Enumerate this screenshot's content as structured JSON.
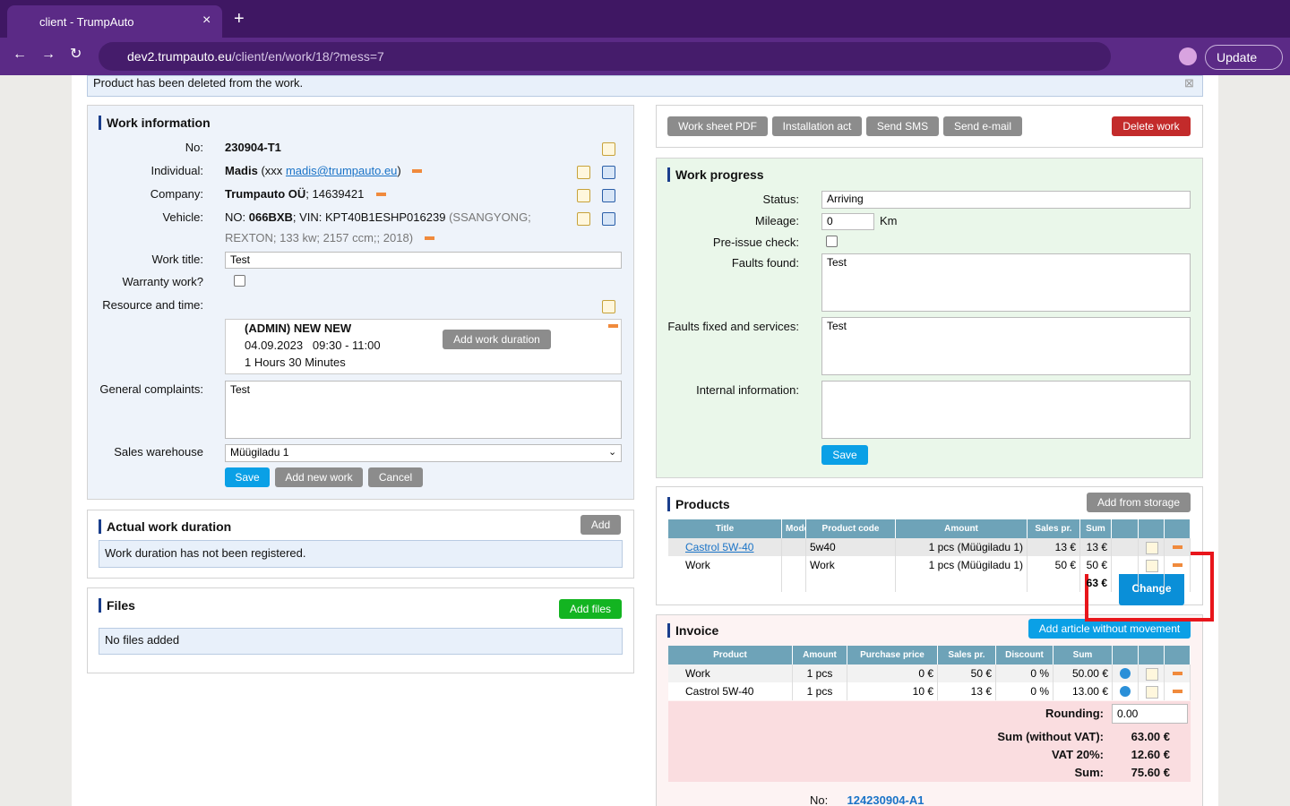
{
  "browser": {
    "tab_title": "client - TrumpAuto",
    "url_host": "dev2.trumpauto.eu",
    "url_path": "/client/en/work/18/?mess=7",
    "update": "Update"
  },
  "message": "Product has been deleted from the work.",
  "work_info": {
    "title": "Work information",
    "no_label": "No:",
    "no": "230904-T1",
    "individual_label": "Individual:",
    "individual_name": "Madis",
    "individual_pre": "(xxx",
    "individual_email": "madis@trumpauto.eu",
    "individual_post": ")",
    "company_label": "Company:",
    "company_name": "Trumpauto OÜ",
    "company_code": "; 14639421",
    "vehicle_label": "Vehicle:",
    "vehicle_pre": "NO:",
    "vehicle_no": "066BXB",
    "vehicle_vin": "; VIN: KPT40B1ESHP016239",
    "vehicle_desc_1": "(SSANGYONG;",
    "vehicle_desc_2": "REXTON; 133 kw; 2157 ccm;; 2018)",
    "work_title_label": "Work title:",
    "work_title": "Test",
    "warranty_label": "Warranty work?",
    "resource_label": "Resource and time:",
    "resource_name": "(ADMIN) NEW NEW",
    "resource_date": "04.09.2023",
    "resource_time": "09:30 - 11:00",
    "resource_duration": "1 Hours 30 Minutes",
    "add_duration": "Add work duration",
    "complaints_label": "General complaints:",
    "complaints": "Test",
    "warehouse_label": "Sales warehouse",
    "warehouse": "Müügiladu 1",
    "save": "Save",
    "add_new": "Add new work",
    "cancel": "Cancel"
  },
  "actual_duration": {
    "title": "Actual work duration",
    "add": "Add",
    "empty": "Work duration has not been registered."
  },
  "files": {
    "title": "Files",
    "add": "Add files",
    "empty": "No files added"
  },
  "actions": [
    "Work sheet PDF",
    "Installation act",
    "Send SMS",
    "Send e-mail"
  ],
  "delete": "Delete work",
  "progress": {
    "title": "Work progress",
    "status_label": "Status:",
    "status": "Arriving",
    "mileage_label": "Mileage:",
    "mileage": "0",
    "mileage_unit": "Km",
    "pre_issue_label": "Pre-issue check:",
    "faults_found_label": "Faults found:",
    "faults_found": "Test",
    "faults_fixed_label": "Faults fixed and services:",
    "faults_fixed": "Test",
    "internal_label": "Internal information:",
    "save": "Save"
  },
  "products": {
    "title": "Products",
    "add": "Add from storage",
    "headers": [
      "Title",
      "Model",
      "Product code",
      "Amount",
      "Sales pr.",
      "Sum"
    ],
    "rows": [
      {
        "title": "Castrol 5W-40",
        "code": "5w40",
        "amount": "1 pcs (Müügiladu 1)",
        "price": "13 €",
        "sum": "13 €"
      },
      {
        "title": "Work",
        "code": "Work",
        "amount": "1 pcs (Müügiladu 1)",
        "price": "50 €",
        "sum": "50 €"
      }
    ],
    "total": "63 €"
  },
  "tooltip": "Change",
  "invoice": {
    "title": "Invoice",
    "add": "Add article without movement",
    "headers": [
      "Product",
      "Amount",
      "Purchase price",
      "Sales pr.",
      "Discount",
      "Sum"
    ],
    "rows": [
      [
        "Work",
        "1 pcs",
        "0 €",
        "50 €",
        "0 %",
        "50.00 €"
      ],
      [
        "Castrol 5W-40",
        "1 pcs",
        "10 €",
        "13 €",
        "0 %",
        "13.00 €"
      ]
    ],
    "rounding_label": "Rounding:",
    "rounding": "0.00",
    "sum_novat_label": "Sum (without VAT):",
    "sum_novat": "63.00 €",
    "vat_label": "VAT 20%:",
    "vat": "12.60 €",
    "sum_label": "Sum:",
    "sum": "75.60 €",
    "no_label": "No:",
    "no": "124230904-A1"
  }
}
